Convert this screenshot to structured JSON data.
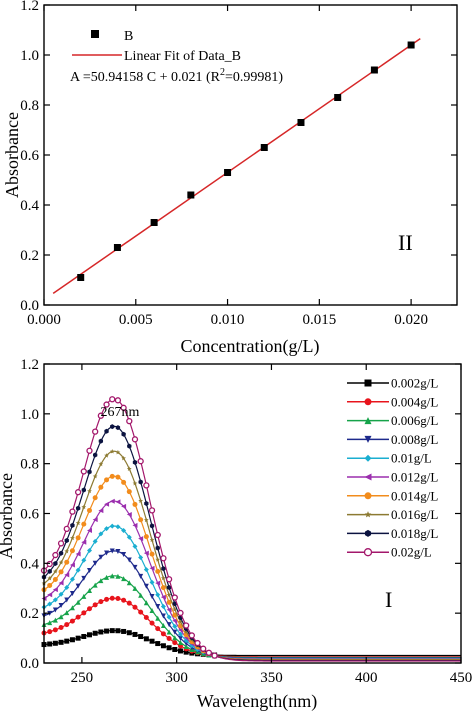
{
  "chart_data": [
    {
      "type": "scatter",
      "panel_label": "II",
      "xlabel": "Concentration(g/L)",
      "ylabel": "Absorbance",
      "xlim": [
        0.0,
        0.0225
      ],
      "ylim": [
        0.0,
        1.2
      ],
      "xticks": [
        "0.000",
        "0.005",
        "0.010",
        "0.015",
        "0.020"
      ],
      "yticks": [
        "0.0",
        "0.2",
        "0.4",
        "0.6",
        "0.8",
        "1.0",
        "1.2"
      ],
      "legend": {
        "position": "top-left",
        "points_label": "B",
        "fit_label": "Linear Fit of Data_B",
        "equation_main": "A =50.94158 C + 0.021 (R",
        "equation_sup": "2",
        "equation_tail": "=0.99981)"
      },
      "points": {
        "x": [
          0.002,
          0.004,
          0.006,
          0.008,
          0.01,
          0.012,
          0.014,
          0.016,
          0.018,
          0.02
        ],
        "y": [
          0.11,
          0.23,
          0.33,
          0.44,
          0.53,
          0.63,
          0.73,
          0.83,
          0.94,
          1.04
        ]
      },
      "fit": {
        "slope": 50.94158,
        "intercept": 0.021,
        "x_range": [
          0.0005,
          0.0205
        ]
      },
      "colors": {
        "points": "#000000",
        "fit": "#d62728"
      }
    },
    {
      "type": "line",
      "panel_label": "I",
      "xlabel": "Wavelength(nm)",
      "ylabel": "Absorbance",
      "xlim": [
        230,
        450
      ],
      "ylim": [
        0.0,
        1.2
      ],
      "xticks": [
        "250",
        "300",
        "350",
        "400",
        "450"
      ],
      "yticks": [
        "0.0",
        "0.2",
        "0.4",
        "0.6",
        "0.8",
        "1.0",
        "1.2"
      ],
      "annotation": "267nm",
      "legend_position": "top-right",
      "peak_wavelength": 267,
      "series": [
        {
          "name": "0.002g/L",
          "color": "#000000",
          "marker": "square",
          "peak": 0.13,
          "base": 0.07,
          "tail": 0.03
        },
        {
          "name": "0.004g/L",
          "color": "#e8141c",
          "marker": "circle",
          "peak": 0.26,
          "base": 0.11,
          "tail": 0.025
        },
        {
          "name": "0.006g/L",
          "color": "#16a34a",
          "marker": "triangle-up",
          "peak": 0.35,
          "base": 0.14,
          "tail": 0.022
        },
        {
          "name": "0.008g/L",
          "color": "#1e2a8c",
          "marker": "triangle-down",
          "peak": 0.45,
          "base": 0.17,
          "tail": 0.02
        },
        {
          "name": "0.01g/L",
          "color": "#1aaed0",
          "marker": "diamond",
          "peak": 0.55,
          "base": 0.2,
          "tail": 0.018
        },
        {
          "name": "0.012g/L",
          "color": "#9b2fae",
          "marker": "triangle-left",
          "peak": 0.65,
          "base": 0.23,
          "tail": 0.016
        },
        {
          "name": "0.014g/L",
          "color": "#f28c1c",
          "marker": "circle",
          "peak": 0.75,
          "base": 0.26,
          "tail": 0.014
        },
        {
          "name": "0.016g/L",
          "color": "#8c7a32",
          "marker": "star",
          "peak": 0.85,
          "base": 0.28,
          "tail": 0.012
        },
        {
          "name": "0.018g/L",
          "color": "#0b1340",
          "marker": "hexagon",
          "peak": 0.95,
          "base": 0.3,
          "tail": 0.01
        },
        {
          "name": "0.02g/L",
          "color": "#a3176b",
          "marker": "open-circle",
          "peak": 1.06,
          "base": 0.32,
          "tail": 0.008
        }
      ]
    }
  ]
}
